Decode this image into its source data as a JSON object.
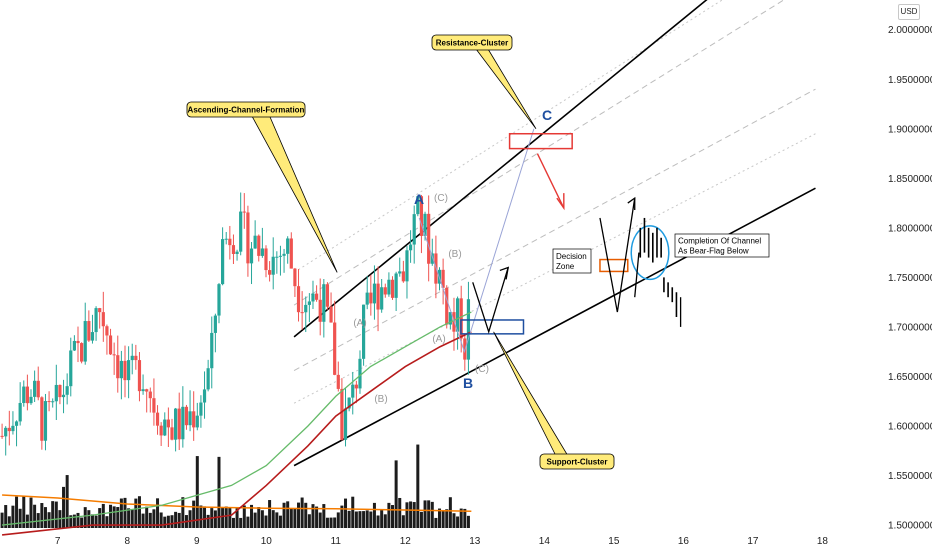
{
  "currency_label": "USD",
  "chart_data": {
    "type": "candlestick",
    "y_axis": {
      "ylim": [
        1.495,
        2.03
      ],
      "tick_values": [
        2.0,
        1.95,
        1.9,
        1.85,
        1.8,
        1.75,
        1.7,
        1.65,
        1.6,
        1.55,
        1.5
      ],
      "tick_labels": [
        "2.00000000",
        "1.95000000",
        "1.90000000",
        "1.85000000",
        "1.80000000",
        "1.75000000",
        "1.70000000",
        "1.65000000",
        "1.60000000",
        "1.55000000",
        "1.50000000"
      ]
    },
    "x_axis": {
      "xlim": [
        6.17,
        18.9
      ],
      "ticks": [
        {
          "value": 7,
          "label": "7"
        },
        {
          "value": 8,
          "label": "8"
        },
        {
          "value": 9,
          "label": "9"
        },
        {
          "value": 10,
          "label": "10"
        },
        {
          "value": 11,
          "label": "11"
        },
        {
          "value": 12,
          "label": "12"
        },
        {
          "value": 13,
          "label": "13"
        },
        {
          "value": 14,
          "label": "14"
        },
        {
          "value": 15,
          "label": "15"
        },
        {
          "value": 16,
          "label": "16"
        },
        {
          "value": 17,
          "label": "17"
        },
        {
          "value": 18,
          "label": "18"
        }
      ]
    },
    "price_path": [
      [
        6.2,
        1.59
      ],
      [
        6.4,
        1.62
      ],
      [
        6.6,
        1.64
      ],
      [
        6.8,
        1.6
      ],
      [
        7.0,
        1.62
      ],
      [
        7.2,
        1.66
      ],
      [
        7.4,
        1.69
      ],
      [
        7.6,
        1.72
      ],
      [
        7.8,
        1.68
      ],
      [
        8.0,
        1.64
      ],
      [
        8.2,
        1.66
      ],
      [
        8.4,
        1.62
      ],
      [
        8.6,
        1.6
      ],
      [
        8.8,
        1.6
      ],
      [
        9.0,
        1.62
      ],
      [
        9.2,
        1.66
      ],
      [
        9.35,
        1.78
      ],
      [
        9.5,
        1.8
      ],
      [
        9.7,
        1.79
      ],
      [
        9.9,
        1.78
      ],
      [
        10.1,
        1.77
      ],
      [
        10.3,
        1.78
      ],
      [
        10.45,
        1.74
      ],
      [
        10.6,
        1.73
      ],
      [
        10.8,
        1.73
      ],
      [
        10.95,
        1.68
      ],
      [
        11.1,
        1.6
      ],
      [
        11.25,
        1.63
      ],
      [
        11.4,
        1.7
      ],
      [
        11.6,
        1.74
      ],
      [
        11.8,
        1.75
      ],
      [
        12.0,
        1.76
      ],
      [
        12.1,
        1.8
      ],
      [
        12.2,
        1.81
      ],
      [
        12.35,
        1.78
      ],
      [
        12.5,
        1.75
      ],
      [
        12.6,
        1.72
      ],
      [
        12.7,
        1.7
      ],
      [
        12.8,
        1.71
      ],
      [
        12.85,
        1.68
      ],
      [
        12.95,
        1.74
      ]
    ],
    "ema_green": [
      [
        6.2,
        1.5
      ],
      [
        7.5,
        1.51
      ],
      [
        8.5,
        1.52
      ],
      [
        9.5,
        1.54
      ],
      [
        10.0,
        1.56
      ],
      [
        10.6,
        1.6
      ],
      [
        11.0,
        1.63
      ],
      [
        11.5,
        1.66
      ],
      [
        12.0,
        1.68
      ],
      [
        12.5,
        1.7
      ],
      [
        12.95,
        1.715
      ]
    ],
    "ema_red": [
      [
        6.2,
        1.49
      ],
      [
        7.5,
        1.5
      ],
      [
        8.5,
        1.5
      ],
      [
        9.5,
        1.51
      ],
      [
        10.0,
        1.54
      ],
      [
        10.6,
        1.58
      ],
      [
        11.0,
        1.61
      ],
      [
        11.5,
        1.635
      ],
      [
        12.0,
        1.66
      ],
      [
        12.5,
        1.68
      ],
      [
        12.95,
        1.695
      ]
    ],
    "volume_ma": [
      [
        6.2,
        0.55
      ],
      [
        7.0,
        0.5
      ],
      [
        8.0,
        0.4
      ],
      [
        9.0,
        0.35
      ],
      [
        10.0,
        0.33
      ],
      [
        11.0,
        0.32
      ],
      [
        12.0,
        0.3
      ],
      [
        12.95,
        0.28
      ]
    ],
    "channel": {
      "lower": [
        [
          10.4,
          1.56
        ],
        [
          17.9,
          1.84
        ]
      ],
      "upper": [
        [
          10.4,
          1.69
        ],
        [
          17.9,
          2.12
        ]
      ],
      "inner_dashed": [
        [
          [
            10.4,
            1.722
          ],
          [
            17.9,
            2.05
          ]
        ],
        [
          [
            10.4,
            1.656
          ],
          [
            17.9,
            1.94
          ]
        ]
      ],
      "inner_dotted": [
        [
          [
            10.4,
            1.755
          ],
          [
            17.9,
            2.09
          ]
        ],
        [
          [
            10.4,
            1.623
          ],
          [
            17.9,
            1.895
          ]
        ]
      ]
    },
    "wave_path": [
      [
        12.2,
        1.81
      ],
      [
        12.85,
        1.675
      ],
      [
        13.85,
        1.9
      ]
    ],
    "zones": {
      "resistance": {
        "x0": 13.5,
        "x1": 14.4,
        "y0": 1.88,
        "y1": 1.895,
        "color": "#e53935"
      },
      "support": {
        "x0": 12.8,
        "x1": 13.7,
        "y0": 1.693,
        "y1": 1.707,
        "color": "#1f4fa0"
      },
      "decision": {
        "x0": 14.8,
        "x1": 15.2,
        "y0": 1.756,
        "y1": 1.768,
        "color": "#e65c00"
      },
      "completion_circle": {
        "cx": 15.52,
        "cy": 1.775,
        "rx": 0.27,
        "ry": 0.027,
        "color": "#1e9be0"
      }
    },
    "callouts": {
      "ascending": "Ascending-Channel-Formation",
      "resistance": "Resistance-Cluster",
      "support": "Support-Cluster",
      "decision": "Decision\nZone",
      "completion": "Completion Of Channel\nAs Bear-Flag Below"
    },
    "wave_labels": {
      "A": "A",
      "B": "B",
      "C": "C",
      "small_C_top": "(C)",
      "small_B_top": "(B)",
      "small_A_top": "(A)",
      "small_A_left": "(A)",
      "small_B_left": "(B)",
      "small_C_bottom": "(C)"
    },
    "colors": {
      "up": "#26a69a",
      "down": "#ef5350",
      "ema_green": "#66bb6a",
      "ema_red": "#b71c1c",
      "volume": "#1c1c1c",
      "volume_ma": "#f57c00",
      "channel": "#000000",
      "callout_fill": "#ffeb7a"
    }
  }
}
